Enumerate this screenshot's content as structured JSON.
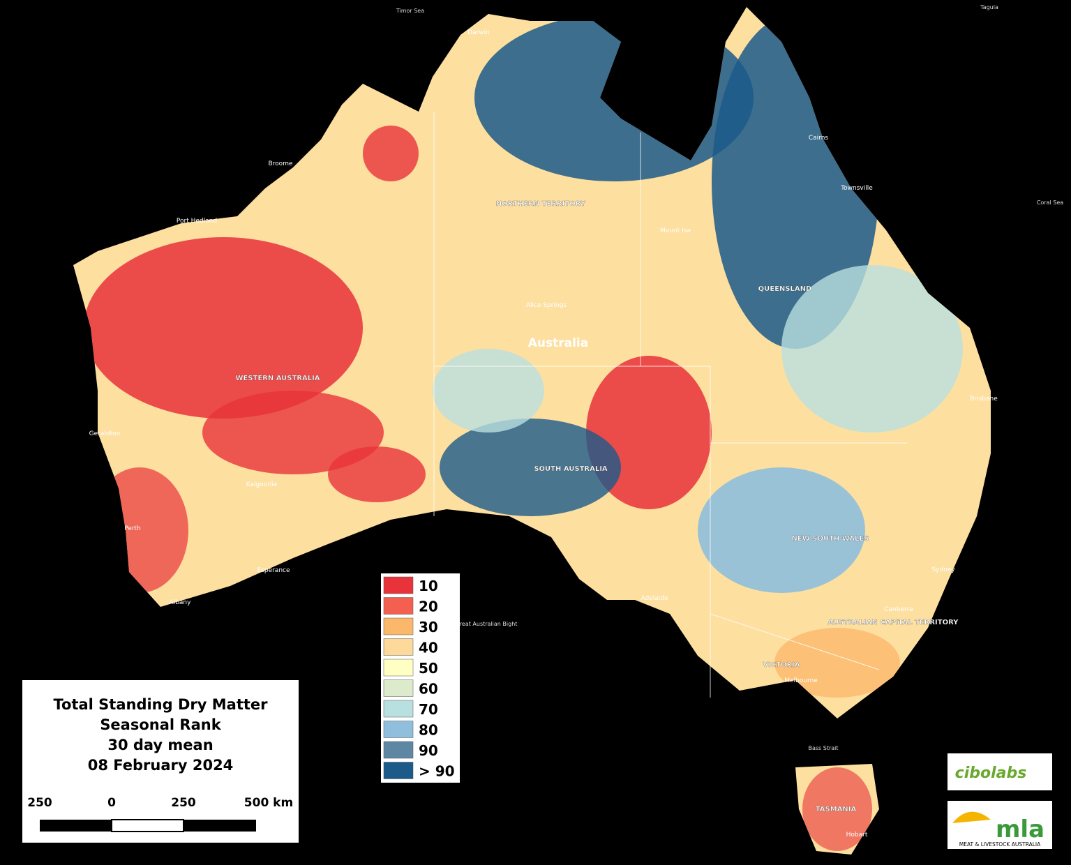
{
  "title_lines": [
    "Total Standing Dry Matter",
    "Seasonal Rank",
    "30 day mean",
    "08 February 2024"
  ],
  "legend": [
    {
      "label": "10",
      "color": "#e8333a"
    },
    {
      "label": "20",
      "color": "#f4604f"
    },
    {
      "label": "30",
      "color": "#fbb86b"
    },
    {
      "label": "40",
      "color": "#fdd99a"
    },
    {
      "label": "50",
      "color": "#ffffc4"
    },
    {
      "label": "60",
      "color": "#dcebcc"
    },
    {
      "label": "70",
      "color": "#b9e0e0"
    },
    {
      "label": "80",
      "color": "#8fbfdc"
    },
    {
      "label": "90",
      "color": "#5e87a4"
    },
    {
      "label": "> 90",
      "color": "#1c5a8a"
    }
  ],
  "scale_bar": [
    "250",
    "0",
    "250",
    "500 km"
  ],
  "logos": {
    "cibolabs": "cibolabs",
    "mla": "mla",
    "mla_tagline": "MEAT & LIVESTOCK AUSTRALIA"
  },
  "places": {
    "country": "Australia",
    "wa": "WESTERN AUSTRALIA",
    "nt": "NORTHERN TERRITORY",
    "qld": "QUEENSLAND",
    "sa": "SOUTH AUSTRALIA",
    "nsw": "NEW SOUTH WALES",
    "vic": "VICTORIA",
    "tas": "TASMANIA",
    "act": "AUSTRALIAN CAPITAL TERRITORY",
    "perth": "Perth",
    "adelaide": "Adelaide",
    "melbourne": "Melbourne",
    "sydney": "Sydney",
    "brisbane": "Brisbane",
    "darwin": "Darwin",
    "canberra": "Canberra",
    "hobart": "Hobart",
    "alice": "Alice Springs",
    "cairns": "Cairns",
    "townsville": "Townsville",
    "broome": "Broome",
    "geraldton": "Geraldton",
    "kalgoorlie": "Kalgoorlie",
    "esperance": "Esperance",
    "albany": "Albany",
    "hedland": "Port Hedland",
    "isa": "Mount Isa",
    "coral": "Coral Sea",
    "timor": "Timor Sea",
    "bight": "Great Australian Bight",
    "bass": "Bass Strait",
    "tagula": "Tagula"
  }
}
